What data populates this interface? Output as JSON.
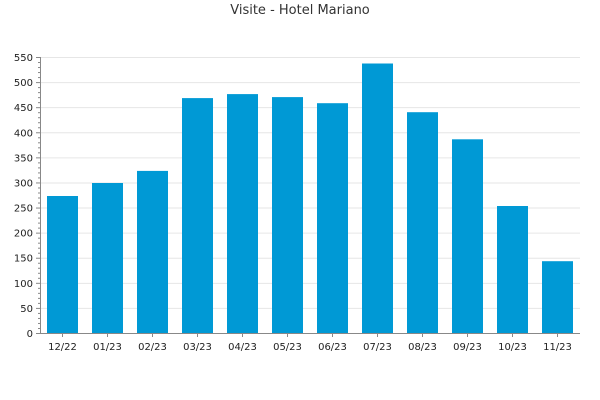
{
  "chart_data": {
    "type": "bar",
    "title": "Visite - Hotel Mariano",
    "xlabel": "",
    "ylabel": "",
    "categories": [
      "12/22",
      "01/23",
      "02/23",
      "03/23",
      "04/23",
      "05/23",
      "06/23",
      "07/23",
      "08/23",
      "09/23",
      "10/23",
      "11/23"
    ],
    "values": [
      273,
      299,
      323,
      468,
      476,
      470,
      458,
      537,
      440,
      386,
      253,
      143
    ],
    "ylim": [
      0,
      550
    ],
    "yticks": [
      0,
      50,
      100,
      150,
      200,
      250,
      300,
      350,
      400,
      450,
      500,
      550
    ],
    "grid": true,
    "legend": "none",
    "bar_color": "#0099d5",
    "grid_color": "#e6e6e6",
    "axis_color": "#888888"
  }
}
